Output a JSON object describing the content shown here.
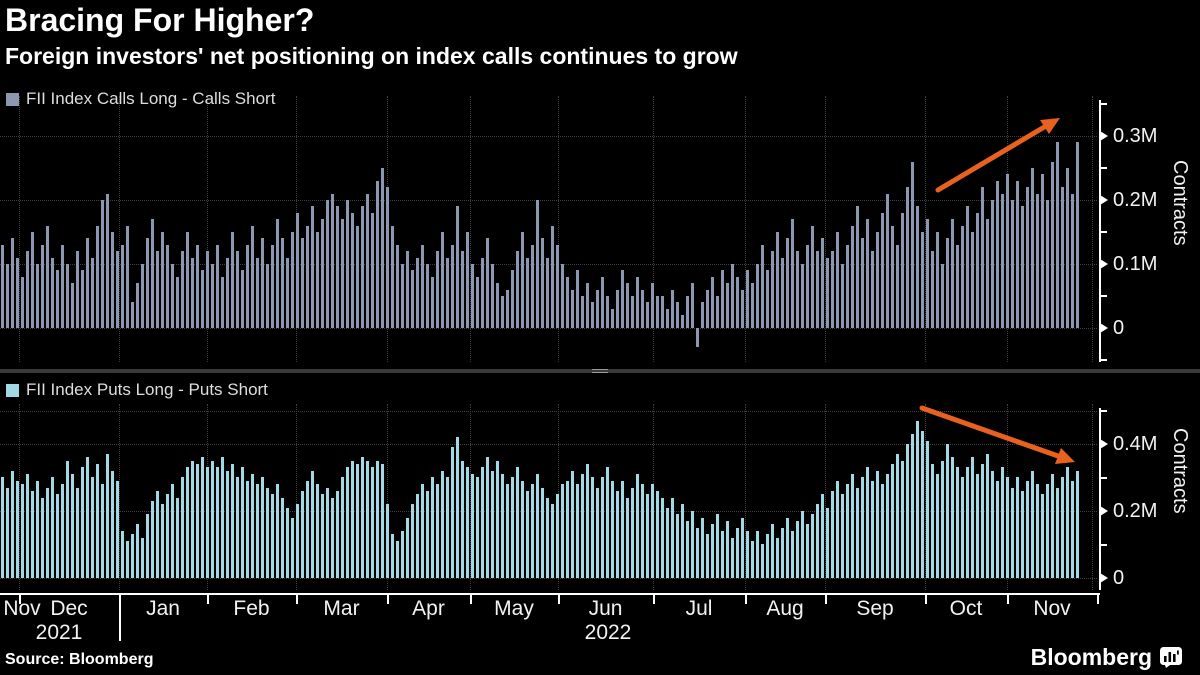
{
  "header": {
    "title": "Bracing For Higher?",
    "subtitle": "Foreign investors' net positioning on index calls continues to grow"
  },
  "source": {
    "label": "Source: Bloomberg"
  },
  "logo": {
    "text": "Bloomberg"
  },
  "colors": {
    "calls_bar": "#8c97b2",
    "puts_bar": "#a2d9e4",
    "arrow": "#e8611f",
    "grid": "#3f3f3f",
    "divider": "#3a3a3a",
    "divider_handle": "#9a9a9a"
  },
  "x_axis": {
    "months": [
      "Nov",
      "Dec",
      "Jan",
      "Feb",
      "Mar",
      "Apr",
      "May",
      "Jun",
      "Jul",
      "Aug",
      "Sep",
      "Oct",
      "Nov"
    ],
    "years": [
      {
        "label": "2021"
      },
      {
        "label": "2022"
      }
    ]
  },
  "chart_data": [
    {
      "type": "bar",
      "panel": "calls",
      "legend": "FII Index Calls Long - Calls Short",
      "ylabel": "Contracts",
      "unit": "M contracts",
      "ylim": [
        -0.05,
        0.36
      ],
      "grid_values": [
        0.3,
        0.2,
        0.1,
        0
      ],
      "yticks": [
        {
          "v": 0.3,
          "label": "0.3M"
        },
        {
          "v": 0.2,
          "label": "0.2M"
        },
        {
          "v": 0.1,
          "label": "0.1M"
        },
        {
          "v": 0,
          "label": "0"
        }
      ],
      "yticks_minor": [
        0.35,
        0.25,
        0.15,
        0.05,
        -0.05
      ],
      "annotation": {
        "trend": "rising",
        "shape": "arrow-up-right"
      },
      "values": [
        0.13,
        0.1,
        0.14,
        0.11,
        0.08,
        0.12,
        0.15,
        0.1,
        0.13,
        0.16,
        0.11,
        0.09,
        0.13,
        0.1,
        0.07,
        0.12,
        0.09,
        0.14,
        0.11,
        0.16,
        0.2,
        0.21,
        0.15,
        0.12,
        0.13,
        0.16,
        0.04,
        0.07,
        0.1,
        0.14,
        0.17,
        0.12,
        0.15,
        0.13,
        0.1,
        0.08,
        0.12,
        0.15,
        0.11,
        0.13,
        0.09,
        0.12,
        0.1,
        0.13,
        0.08,
        0.11,
        0.15,
        0.12,
        0.09,
        0.13,
        0.16,
        0.11,
        0.14,
        0.1,
        0.13,
        0.17,
        0.14,
        0.11,
        0.15,
        0.18,
        0.14,
        0.16,
        0.19,
        0.15,
        0.17,
        0.2,
        0.21,
        0.19,
        0.17,
        0.2,
        0.18,
        0.16,
        0.19,
        0.21,
        0.18,
        0.23,
        0.25,
        0.22,
        0.16,
        0.13,
        0.1,
        0.12,
        0.09,
        0.11,
        0.13,
        0.1,
        0.08,
        0.12,
        0.15,
        0.11,
        0.13,
        0.19,
        0.12,
        0.15,
        0.1,
        0.08,
        0.11,
        0.14,
        0.1,
        0.07,
        0.05,
        0.06,
        0.09,
        0.12,
        0.15,
        0.11,
        0.13,
        0.2,
        0.14,
        0.11,
        0.16,
        0.13,
        0.1,
        0.08,
        0.06,
        0.09,
        0.05,
        0.07,
        0.04,
        0.06,
        0.08,
        0.05,
        0.03,
        0.06,
        0.09,
        0.07,
        0.05,
        0.08,
        0.06,
        0.04,
        0.07,
        0.05,
        0.05,
        0.03,
        0.06,
        0.04,
        0.02,
        0.05,
        0.07,
        -0.03,
        0.04,
        0.06,
        0.08,
        0.05,
        0.09,
        0.07,
        0.1,
        0.08,
        0.06,
        0.09,
        0.07,
        0.1,
        0.13,
        0.09,
        0.12,
        0.15,
        0.11,
        0.14,
        0.17,
        0.12,
        0.1,
        0.13,
        0.16,
        0.12,
        0.14,
        0.11,
        0.12,
        0.15,
        0.1,
        0.13,
        0.16,
        0.19,
        0.14,
        0.17,
        0.12,
        0.15,
        0.18,
        0.21,
        0.16,
        0.13,
        0.18,
        0.22,
        0.26,
        0.19,
        0.15,
        0.17,
        0.12,
        0.15,
        0.1,
        0.14,
        0.17,
        0.13,
        0.16,
        0.19,
        0.15,
        0.18,
        0.22,
        0.17,
        0.2,
        0.23,
        0.21,
        0.24,
        0.2,
        0.23,
        0.19,
        0.22,
        0.25,
        0.21,
        0.24,
        0.2,
        0.26,
        0.29,
        0.22,
        0.25,
        0.21,
        0.29
      ]
    },
    {
      "type": "bar",
      "panel": "puts",
      "legend": "FII Index Puts Long - Puts Short",
      "ylabel": "Contracts",
      "unit": "M contracts",
      "ylim": [
        0,
        0.52
      ],
      "grid_values": [
        0.5,
        0.4,
        0.2,
        0
      ],
      "yticks": [
        {
          "v": 0.4,
          "label": "0.4M"
        },
        {
          "v": 0.2,
          "label": "0.2M"
        },
        {
          "v": 0,
          "label": "0"
        }
      ],
      "yticks_minor": [
        0.5,
        0.3,
        0.1
      ],
      "annotation": {
        "trend": "falling",
        "shape": "arrow-down-right"
      },
      "values": [
        0.3,
        0.27,
        0.32,
        0.29,
        0.28,
        0.31,
        0.26,
        0.29,
        0.24,
        0.27,
        0.3,
        0.25,
        0.28,
        0.35,
        0.31,
        0.27,
        0.33,
        0.36,
        0.3,
        0.34,
        0.28,
        0.37,
        0.32,
        0.29,
        0.14,
        0.11,
        0.13,
        0.16,
        0.12,
        0.19,
        0.23,
        0.26,
        0.22,
        0.25,
        0.28,
        0.24,
        0.3,
        0.33,
        0.35,
        0.34,
        0.36,
        0.33,
        0.35,
        0.33,
        0.36,
        0.32,
        0.34,
        0.3,
        0.33,
        0.29,
        0.31,
        0.28,
        0.3,
        0.27,
        0.25,
        0.28,
        0.24,
        0.21,
        0.18,
        0.22,
        0.26,
        0.29,
        0.32,
        0.28,
        0.25,
        0.27,
        0.24,
        0.26,
        0.3,
        0.33,
        0.35,
        0.34,
        0.36,
        0.35,
        0.33,
        0.35,
        0.34,
        0.22,
        0.13,
        0.11,
        0.14,
        0.18,
        0.22,
        0.25,
        0.28,
        0.26,
        0.3,
        0.28,
        0.32,
        0.3,
        0.39,
        0.42,
        0.35,
        0.33,
        0.31,
        0.3,
        0.33,
        0.36,
        0.32,
        0.35,
        0.31,
        0.28,
        0.3,
        0.33,
        0.29,
        0.26,
        0.28,
        0.31,
        0.27,
        0.24,
        0.22,
        0.25,
        0.28,
        0.29,
        0.32,
        0.28,
        0.31,
        0.34,
        0.3,
        0.27,
        0.3,
        0.33,
        0.29,
        0.26,
        0.29,
        0.24,
        0.27,
        0.31,
        0.28,
        0.25,
        0.28,
        0.26,
        0.24,
        0.21,
        0.24,
        0.19,
        0.22,
        0.17,
        0.2,
        0.15,
        0.18,
        0.13,
        0.16,
        0.19,
        0.14,
        0.17,
        0.12,
        0.15,
        0.18,
        0.14,
        0.11,
        0.14,
        0.1,
        0.13,
        0.16,
        0.12,
        0.15,
        0.18,
        0.14,
        0.17,
        0.2,
        0.16,
        0.19,
        0.22,
        0.25,
        0.21,
        0.26,
        0.29,
        0.25,
        0.28,
        0.31,
        0.27,
        0.3,
        0.33,
        0.29,
        0.32,
        0.28,
        0.31,
        0.34,
        0.37,
        0.35,
        0.4,
        0.43,
        0.47,
        0.44,
        0.41,
        0.34,
        0.31,
        0.35,
        0.4,
        0.36,
        0.33,
        0.3,
        0.33,
        0.36,
        0.31,
        0.34,
        0.37,
        0.32,
        0.29,
        0.33,
        0.3,
        0.27,
        0.3,
        0.26,
        0.29,
        0.32,
        0.28,
        0.25,
        0.28,
        0.31,
        0.27,
        0.3,
        0.33,
        0.29,
        0.32
      ]
    }
  ]
}
